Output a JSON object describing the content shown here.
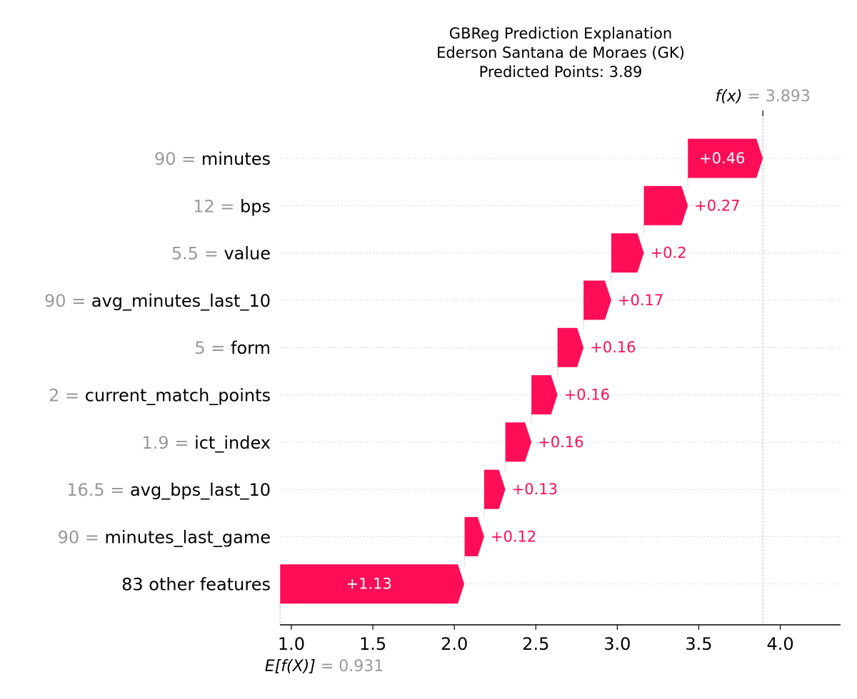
{
  "chart_data": {
    "type": "bar",
    "title_lines": [
      "GBReg Prediction Explanation",
      "Ederson Santana de Moraes (GK)",
      "Predicted Points: 3.89"
    ],
    "base_value": 0.931,
    "base_label": {
      "prefix": "E[f(X)]",
      "value_text": "= 0.931"
    },
    "fx_value": 3.893,
    "fx_label": {
      "prefix": "f(x)",
      "value_text": "= 3.893"
    },
    "xlim": [
      0.93,
      4.37
    ],
    "xticks": [
      1.0,
      1.5,
      2.0,
      2.5,
      3.0,
      3.5,
      4.0
    ],
    "xtick_labels": [
      "1.0",
      "1.5",
      "2.0",
      "2.5",
      "3.0",
      "3.5",
      "4.0"
    ],
    "features": [
      {
        "value_text": "90 =",
        "name": "minutes",
        "contribution": 0.46,
        "label": "+0.46",
        "start": 3.433
      },
      {
        "value_text": "12 =",
        "name": "bps",
        "contribution": 0.27,
        "label": "+0.27",
        "start": 3.163
      },
      {
        "value_text": "5.5 =",
        "name": "value",
        "contribution": 0.2,
        "label": "+0.2",
        "start": 2.963
      },
      {
        "value_text": "90 =",
        "name": "avg_minutes_last_10",
        "contribution": 0.17,
        "label": "+0.17",
        "start": 2.793
      },
      {
        "value_text": "5 =",
        "name": "form",
        "contribution": 0.16,
        "label": "+0.16",
        "start": 2.633
      },
      {
        "value_text": "2 =",
        "name": "current_match_points",
        "contribution": 0.16,
        "label": "+0.16",
        "start": 2.473
      },
      {
        "value_text": "1.9 =",
        "name": "ict_index",
        "contribution": 0.16,
        "label": "+0.16",
        "start": 2.313
      },
      {
        "value_text": "16.5 =",
        "name": "avg_bps_last_10",
        "contribution": 0.13,
        "label": "+0.13",
        "start": 2.183
      },
      {
        "value_text": "90 =",
        "name": "minutes_last_game",
        "contribution": 0.12,
        "label": "+0.12",
        "start": 2.063
      },
      {
        "value_text": "",
        "name": "83 other features",
        "contribution": 1.13,
        "label": "+1.13",
        "start": 0.931
      }
    ],
    "colors": {
      "positive": "#ff0d57",
      "label_inside": "#ffffff",
      "value_gray": "#999999",
      "axis": "#000000",
      "grid": "#cccccc"
    }
  }
}
